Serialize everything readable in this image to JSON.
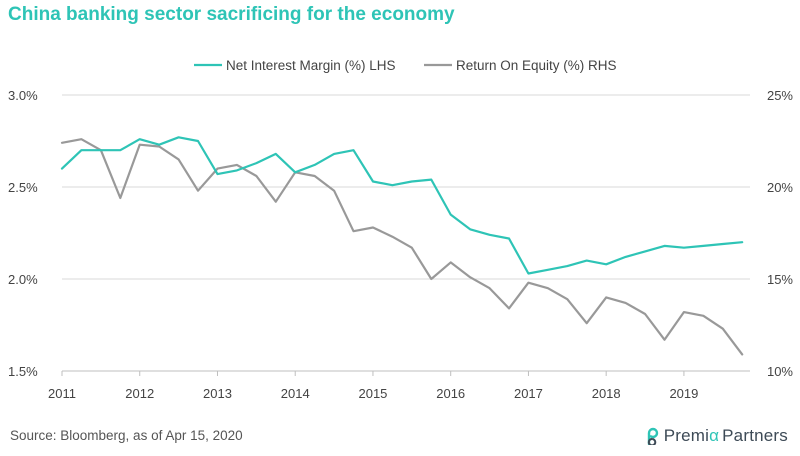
{
  "title": "China banking sector sacrificing for the economy",
  "source": "Source: Bloomberg, as of Apr 15, 2020",
  "logo": {
    "word1": "Premi",
    "alpha": "α",
    "word2": "Partners"
  },
  "colors": {
    "title": "#2ec4b6",
    "nim": "#2ec4b6",
    "roe": "#999999",
    "grid": "#d9d9d9",
    "axis": "#bfbfbf"
  },
  "chart_data": {
    "type": "line",
    "title": "China banking sector sacrificing for the economy",
    "x_ticks": [
      "2011",
      "2012",
      "2013",
      "2014",
      "2015",
      "2016",
      "2017",
      "2018",
      "2019"
    ],
    "xlim": [
      2011,
      2019.85
    ],
    "y_left": {
      "lim": [
        1.5,
        3.0
      ],
      "ticks": [
        1.5,
        2.0,
        2.5,
        3.0
      ],
      "tick_labels": [
        "1.5%",
        "2.0%",
        "2.5%",
        "3.0%"
      ]
    },
    "y_right": {
      "lim": [
        10,
        25
      ],
      "ticks": [
        10,
        15,
        20,
        25
      ],
      "tick_labels": [
        "10%",
        "15%",
        "20%",
        "25%"
      ]
    },
    "grid": "horizontal",
    "legend_position": "top-center",
    "series": [
      {
        "name": "Net Interest Margin (%) LHS",
        "axis": "left",
        "x": [
          2011.0,
          2011.25,
          2011.5,
          2011.75,
          2012.0,
          2012.25,
          2012.5,
          2012.75,
          2013.0,
          2013.25,
          2013.5,
          2013.75,
          2014.0,
          2014.25,
          2014.5,
          2014.75,
          2015.0,
          2015.25,
          2015.5,
          2015.75,
          2016.0,
          2016.25,
          2016.5,
          2016.75,
          2017.0,
          2017.25,
          2017.5,
          2017.75,
          2018.0,
          2018.25,
          2018.5,
          2018.75,
          2019.0,
          2019.25,
          2019.5,
          2019.75
        ],
        "y": [
          2.6,
          2.7,
          2.7,
          2.7,
          2.76,
          2.73,
          2.77,
          2.75,
          2.57,
          2.59,
          2.63,
          2.68,
          2.58,
          2.62,
          2.68,
          2.7,
          2.53,
          2.51,
          2.53,
          2.54,
          2.35,
          2.27,
          2.24,
          2.22,
          2.03,
          2.05,
          2.07,
          2.1,
          2.08,
          2.12,
          2.15,
          2.18,
          2.17,
          2.18,
          2.19,
          2.2
        ]
      },
      {
        "name": "Return On Equity (%) RHS",
        "axis": "right",
        "x": [
          2011.0,
          2011.25,
          2011.5,
          2011.75,
          2012.0,
          2012.25,
          2012.5,
          2012.75,
          2013.0,
          2013.25,
          2013.5,
          2013.75,
          2014.0,
          2014.25,
          2014.5,
          2014.75,
          2015.0,
          2015.25,
          2015.5,
          2015.75,
          2016.0,
          2016.25,
          2016.5,
          2016.75,
          2017.0,
          2017.25,
          2017.5,
          2017.75,
          2018.0,
          2018.25,
          2018.5,
          2018.75,
          2019.0,
          2019.25,
          2019.5,
          2019.75
        ],
        "y": [
          22.4,
          22.6,
          22.0,
          19.4,
          22.3,
          22.2,
          21.5,
          19.8,
          21.0,
          21.2,
          20.6,
          19.2,
          20.8,
          20.6,
          19.8,
          17.6,
          17.8,
          17.3,
          16.7,
          15.0,
          15.9,
          15.1,
          14.5,
          13.4,
          14.8,
          14.5,
          13.9,
          12.6,
          14.0,
          13.7,
          13.1,
          11.7,
          13.2,
          13.0,
          12.3,
          10.9
        ]
      }
    ]
  }
}
